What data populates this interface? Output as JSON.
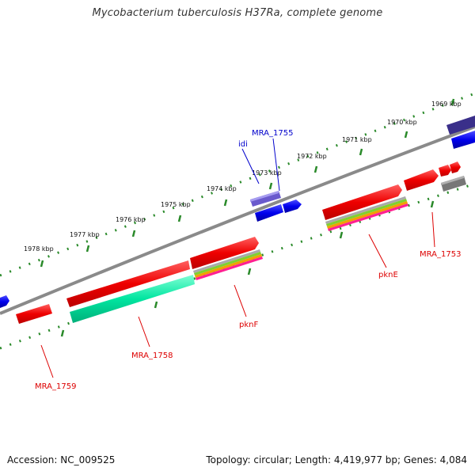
{
  "title": "Mycobacterium tuberculosis H37Ra, complete genome",
  "footer": {
    "accession": "Accession: NC_009525",
    "summary": "Topology: circular; Length: 4,419,977 bp; Genes: 4,084"
  },
  "ruler": {
    "labels": [
      "1969 kbp",
      "1970 kbp",
      "1971 kbp",
      "1972 kbp",
      "1973 kbp",
      "1974 kbp",
      "1975 kbp",
      "1976 kbp",
      "1977 kbp",
      "1978 kbp"
    ]
  },
  "gene_labels": {
    "mra_1755": "MRA_1755",
    "idi": "idi",
    "mra_1753": "MRA_1753",
    "pkne": "pknE",
    "pknf": "pknF",
    "mra_1758": "MRA_1758",
    "mra_1759": "MRA_1759"
  },
  "colors": {
    "gene_red": "#ff0000",
    "gene_blue": "#0000ee",
    "gene_purple": "#6a5acd",
    "gene_teal": "#00e5a0",
    "gene_gray": "#777777",
    "backbone": "#8a8a8a",
    "ruler_dots": "#2a8a2a",
    "label_red": "#dd0000",
    "label_blue": "#0000cc"
  }
}
